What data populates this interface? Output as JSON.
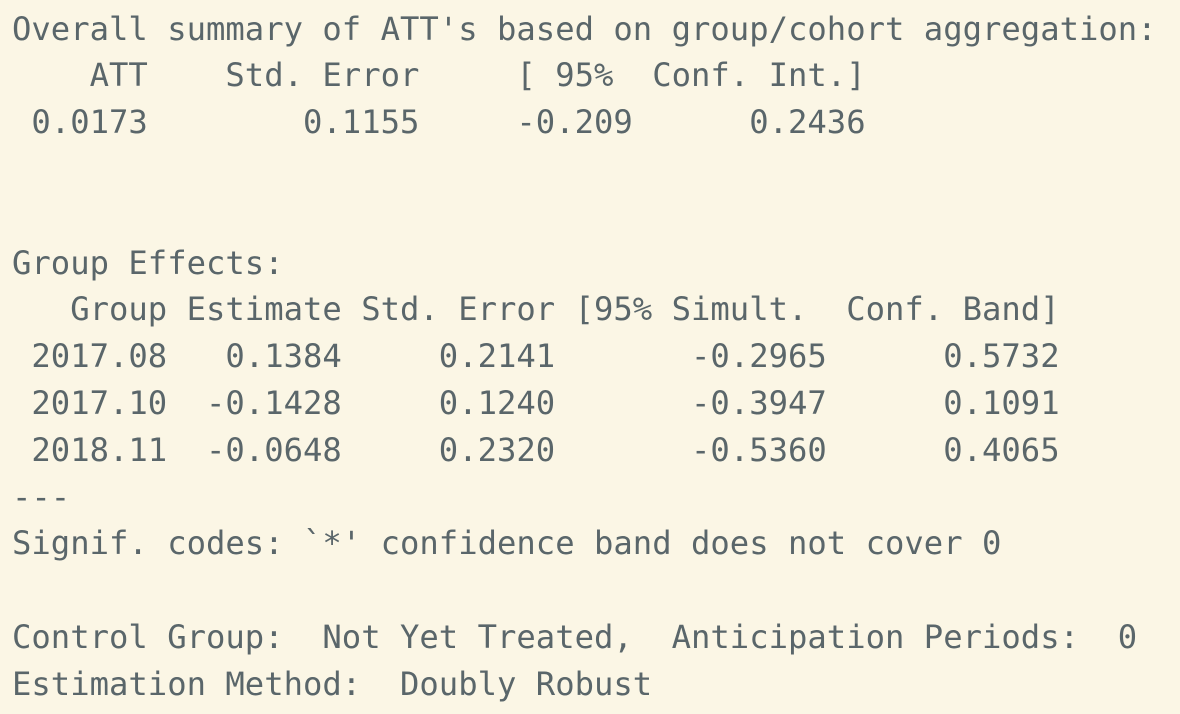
{
  "summary": {
    "title": "Overall summary of ATT's based on group/cohort aggregation:",
    "header": "    ATT    Std. Error     [ 95%  Conf. Int.]",
    "row": " 0.0173        0.1155     -0.209      0.2436"
  },
  "group_effects": {
    "title": "Group Effects:",
    "header": "   Group Estimate Std. Error [95% Simult.  Conf. Band]",
    "rows": [
      " 2017.08   0.1384     0.2141       -0.2965      0.5732",
      " 2017.10  -0.1428     0.1240       -0.3947      0.1091",
      " 2018.11  -0.0648     0.2320       -0.5360      0.4065"
    ],
    "separator": "---"
  },
  "signif": "Signif. codes: `*' confidence band does not cover 0",
  "control": "Control Group:  Not Yet Treated,  Anticipation Periods:  0",
  "method": "Estimation Method:  Doubly Robust"
}
